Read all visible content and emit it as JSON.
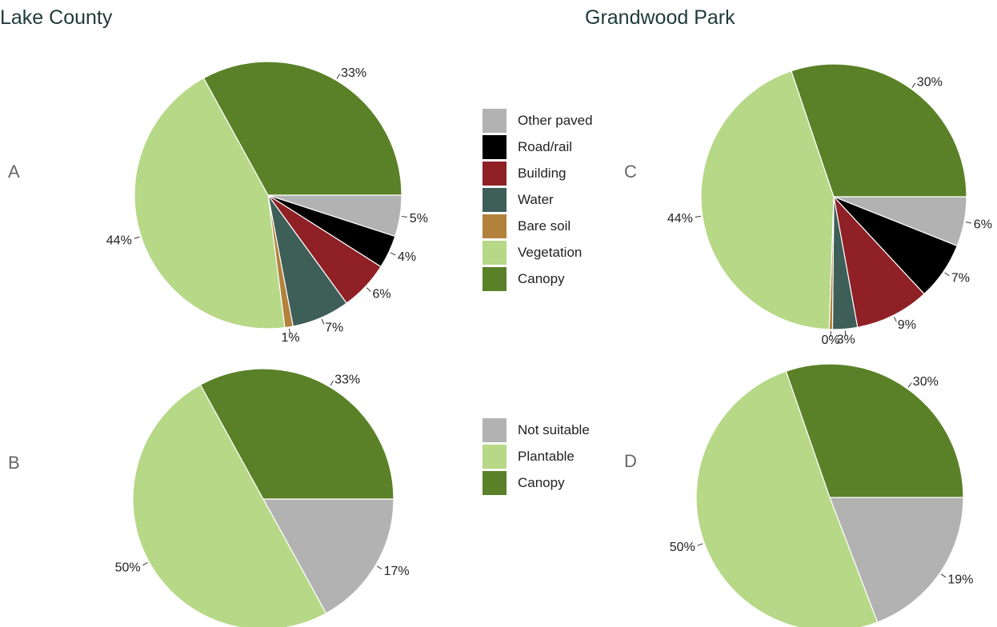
{
  "headings": {
    "left": "Lake County",
    "right": "Grandwood Park"
  },
  "panel_letters": {
    "a": "A",
    "b": "B",
    "c": "C",
    "d": "D"
  },
  "legends": {
    "cover": [
      {
        "label": "Other paved",
        "color": "#b2b2b2"
      },
      {
        "label": "Road/rail",
        "color": "#000000"
      },
      {
        "label": "Building",
        "color": "#8e2026"
      },
      {
        "label": "Water",
        "color": "#3e5e58"
      },
      {
        "label": "Bare soil",
        "color": "#b2813c"
      },
      {
        "label": "Vegetation",
        "color": "#b6d887"
      },
      {
        "label": "Canopy",
        "color": "#5a8127"
      }
    ],
    "suitability": [
      {
        "label": "Not suitable",
        "color": "#b2b2b2"
      },
      {
        "label": "Plantable",
        "color": "#b6d887"
      },
      {
        "label": "Canopy",
        "color": "#5a8127"
      }
    ]
  },
  "chart_data": [
    {
      "type": "pie",
      "panel": "A",
      "title": "",
      "categories": [
        "Other paved",
        "Road/rail",
        "Building",
        "Water",
        "Bare soil",
        "Vegetation",
        "Canopy"
      ],
      "values": [
        5,
        4,
        6,
        7,
        1,
        44,
        33
      ],
      "labels": [
        "5%",
        "4%",
        "6%",
        "7%",
        "1%",
        "44%",
        "33%"
      ],
      "colors": [
        "#b2b2b2",
        "#000000",
        "#8e2026",
        "#3e5e58",
        "#b2813c",
        "#b6d887",
        "#5a8127"
      ]
    },
    {
      "type": "pie",
      "panel": "B",
      "title": "",
      "categories": [
        "Not suitable",
        "Plantable",
        "Canopy"
      ],
      "values": [
        17,
        50,
        33
      ],
      "labels": [
        "17%",
        "50%",
        "33%"
      ],
      "colors": [
        "#b2b2b2",
        "#b6d887",
        "#5a8127"
      ]
    },
    {
      "type": "pie",
      "panel": "C",
      "title": "",
      "categories": [
        "Other paved",
        "Road/rail",
        "Building",
        "Water",
        "Bare soil",
        "Vegetation",
        "Canopy"
      ],
      "values": [
        6,
        7,
        9,
        3,
        0.4,
        44,
        30
      ],
      "labels": [
        "6%",
        "7%",
        "9%",
        "3%",
        "0%",
        "44%",
        "30%"
      ],
      "colors": [
        "#b2b2b2",
        "#000000",
        "#8e2026",
        "#3e5e58",
        "#b2813c",
        "#b6d887",
        "#5a8127"
      ]
    },
    {
      "type": "pie",
      "panel": "D",
      "title": "",
      "categories": [
        "Not suitable",
        "Plantable",
        "Canopy"
      ],
      "values": [
        19,
        50,
        30
      ],
      "labels": [
        "19%",
        "50%",
        "30%"
      ],
      "colors": [
        "#b2b2b2",
        "#b6d887",
        "#5a8127"
      ]
    }
  ]
}
